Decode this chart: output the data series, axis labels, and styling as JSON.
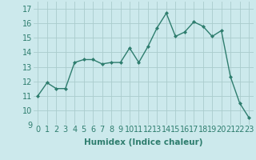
{
  "x": [
    0,
    1,
    2,
    3,
    4,
    5,
    6,
    7,
    8,
    9,
    10,
    11,
    12,
    13,
    14,
    15,
    16,
    17,
    18,
    19,
    20,
    21,
    22,
    23
  ],
  "y": [
    11.0,
    11.9,
    11.5,
    11.5,
    13.3,
    13.5,
    13.5,
    13.2,
    13.3,
    13.3,
    14.3,
    13.3,
    14.4,
    15.7,
    16.7,
    15.1,
    15.4,
    16.1,
    15.8,
    15.1,
    15.5,
    12.3,
    10.5,
    9.5
  ],
  "line_color": "#2e7d6e",
  "marker": "D",
  "marker_size": 2.0,
  "bg_color": "#cce9ec",
  "grid_color": "#aacccc",
  "xlabel": "Humidex (Indice chaleur)",
  "xlabel_fontsize": 7.5,
  "tick_fontsize": 7,
  "ylim": [
    9,
    17.5
  ],
  "yticks": [
    9,
    10,
    11,
    12,
    13,
    14,
    15,
    16,
    17
  ],
  "xlim": [
    -0.5,
    23.5
  ],
  "linewidth": 1.0
}
